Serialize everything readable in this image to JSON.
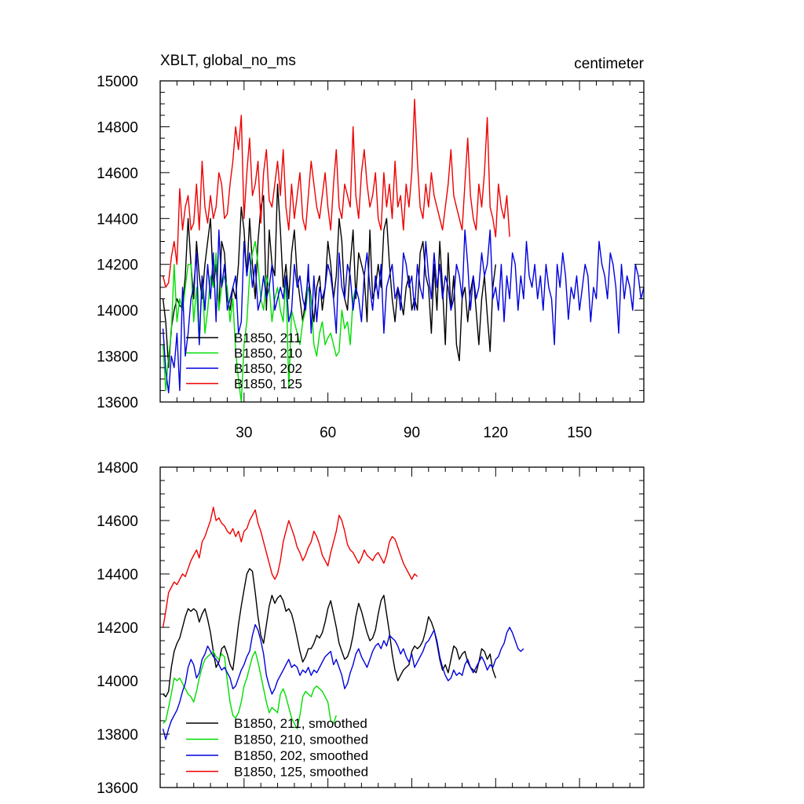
{
  "chart_data": [
    {
      "type": "line",
      "title": "XBLT, global_no_ms",
      "units_label": "centimeter",
      "xlim": [
        0,
        173
      ],
      "ylim": [
        13600,
        15000
      ],
      "xticks": [
        30,
        60,
        90,
        120,
        150
      ],
      "yticks": [
        13600,
        13800,
        14000,
        14200,
        14400,
        14600,
        14800,
        15000
      ],
      "xtick_labels": [
        "30",
        "60",
        "90",
        "120",
        "150"
      ],
      "ytick_labels": [
        "13600",
        "13800",
        "14000",
        "14200",
        "14400",
        "14600",
        "14800",
        "15000"
      ],
      "legend_position": "bottom-left",
      "series": [
        {
          "name": "B1850, 211",
          "color": "#000000",
          "values": [
            14050,
            13950,
            13750,
            13920,
            14000,
            14050,
            14020,
            14010,
            14150,
            14400,
            14200,
            14050,
            14300,
            14150,
            14050,
            14200,
            14300,
            14400,
            14100,
            14200,
            14000,
            14300,
            14250,
            14050,
            14000,
            14100,
            14050,
            14200,
            14450,
            14350,
            14150,
            14400,
            14200,
            14050,
            14300,
            14450,
            14500,
            14000,
            14350,
            14200,
            14150,
            14550,
            14350,
            14100,
            14200,
            14050,
            14250,
            14350,
            14150,
            14050,
            13950,
            14050,
            14150,
            14050,
            13950,
            14100,
            14150,
            14000,
            14100,
            14300,
            14200,
            14050,
            14150,
            14400,
            14300,
            14050,
            14000,
            14200,
            14350,
            14050,
            14250,
            14200,
            14150,
            13950,
            14350,
            14050,
            14100,
            14200,
            14100,
            14350,
            14400,
            14200,
            14050,
            13950,
            14100,
            14050,
            13980,
            14100,
            14150,
            14000,
            14050,
            14000,
            14250,
            14300,
            14150,
            14100,
            13900,
            14200,
            14000,
            14300,
            14100,
            13850,
            14250,
            14000,
            14150,
            13850,
            13780,
            14050,
            14100,
            13950,
            14080,
            14150,
            14000,
            13850,
            14050,
            14150,
            13980,
            13820,
            14100,
            14200
          ]
        },
        {
          "name": "B1850, 210",
          "color": "#00dd00",
          "values": [
            13850,
            13650,
            13800,
            13900,
            14200,
            13950,
            14050,
            14000,
            14100,
            14200,
            14200,
            13950,
            14100,
            13850,
            14150,
            13900,
            14000,
            14150,
            14100,
            14250,
            14000,
            14100,
            14150,
            14100,
            13950,
            14050,
            13820,
            13700,
            13600,
            13850,
            13950,
            14150,
            14250,
            14300,
            14200,
            14050,
            14000,
            14150,
            14100,
            13950,
            14050,
            14100,
            14000,
            13950,
            14150,
            13660,
            14000,
            13950,
            13900,
            13850,
            13950,
            14000,
            14100,
            14050,
            13850,
            13800,
            13900,
            13950,
            13850,
            13880,
            13900,
            13850,
            13800,
            13820,
            14000,
            13920,
            13950,
            13850,
            14050,
            14100
          ]
        },
        {
          "name": "B1850, 202",
          "color": "#0000dd",
          "values": [
            13920,
            13740,
            13640,
            13800,
            13750,
            13900,
            13650,
            14100,
            13800,
            13900,
            14050,
            14100,
            14250,
            13850,
            14150,
            14000,
            14200,
            14050,
            14250,
            13950,
            14350,
            14100,
            14200,
            14000,
            14050,
            14100,
            14150,
            13900,
            13950,
            14300,
            14150,
            14250,
            14100,
            14200,
            14000,
            14050,
            14150,
            14050,
            14100,
            14200,
            14000,
            14050,
            14100,
            14050,
            14150,
            13950,
            14000,
            14200,
            14100,
            14150,
            14050,
            14000,
            14200,
            13900,
            14150,
            13950,
            14100,
            14050,
            14100,
            14200,
            14150,
            14050,
            13900,
            14250,
            14100,
            14050,
            14200,
            14150,
            14000,
            14100,
            14050,
            13950,
            14150,
            14250,
            14100,
            14000,
            14150,
            14050,
            14200,
            13900,
            14100,
            14150,
            14200,
            14050,
            14100,
            14000,
            14250,
            14200,
            14100,
            14150,
            14000,
            14200,
            14100,
            14050,
            14300,
            14150,
            14050,
            14250,
            14100,
            14200,
            14050,
            14150,
            14100,
            14000,
            14050,
            14200,
            14150,
            14050,
            14350,
            14200,
            14000,
            14150,
            14050,
            14100,
            14250,
            14150,
            14200,
            14350,
            14050,
            14100,
            14000,
            14200,
            13950,
            14150,
            14050,
            14250,
            14200,
            14000,
            14150,
            14050,
            14300,
            14150,
            14100,
            14200,
            14050,
            14150,
            14000,
            14200,
            14100,
            14050,
            13850,
            14200,
            14100,
            14250,
            14150,
            13960,
            14100,
            14050,
            14150,
            14000,
            14100,
            14200,
            14150,
            13950,
            14100,
            14050,
            14300,
            14200,
            14150,
            14050,
            14250,
            14200,
            14100,
            13900,
            14200,
            14050,
            14150,
            14100,
            14000,
            14200,
            14150,
            14050,
            14100,
            14200
          ]
        },
        {
          "name": "B1850, 125",
          "color": "#ee0000",
          "values": [
            14150,
            14100,
            14120,
            14230,
            14300,
            14200,
            14530,
            14350,
            14450,
            14500,
            14350,
            14380,
            14550,
            14350,
            14650,
            14450,
            14380,
            14500,
            14400,
            14450,
            14600,
            14550,
            14400,
            14420,
            14550,
            14650,
            14800,
            14700,
            14850,
            14400,
            14600,
            14750,
            14500,
            14550,
            14650,
            14380,
            14600,
            14700,
            14480,
            14450,
            14550,
            14650,
            14500,
            14700,
            14450,
            14350,
            14550,
            14400,
            14500,
            14600,
            14400,
            14350,
            14500,
            14650,
            14550,
            14450,
            14400,
            14500,
            14600,
            14450,
            14350,
            14550,
            14700,
            14450,
            14400,
            14550,
            14500,
            14450,
            14800,
            14500,
            14400,
            14600,
            14700,
            14550,
            14450,
            14500,
            14600,
            14400,
            14350,
            14600,
            14450,
            14550,
            14400,
            14650,
            14450,
            14500,
            14350,
            14550,
            14450,
            14600,
            14920,
            14650,
            14450,
            14400,
            14550,
            14450,
            14600,
            14500,
            14450,
            14400,
            14350,
            14450,
            14550,
            14700,
            14500,
            14450,
            14400,
            14350,
            14550,
            14750,
            14500,
            14400,
            14350,
            14550,
            14450,
            14600,
            14840,
            14450,
            14400,
            14320,
            14550,
            14450,
            14400,
            14500,
            14320
          ]
        }
      ]
    },
    {
      "type": "line",
      "title": "",
      "xlim": [
        0,
        173
      ],
      "ylim": [
        13600,
        14800
      ],
      "xticks": [
        30,
        60,
        90,
        120,
        150
      ],
      "yticks": [
        13600,
        13800,
        14000,
        14200,
        14400,
        14600,
        14800
      ],
      "ytick_labels": [
        "13600",
        "13800",
        "14000",
        "14200",
        "14400",
        "14600",
        "14800"
      ],
      "legend_position": "bottom-left",
      "series": [
        {
          "name": "B1850, 211, smoothed",
          "color": "#000000",
          "values": [
            13950,
            13940,
            13960,
            14050,
            14110,
            14140,
            14160,
            14200,
            14240,
            14270,
            14260,
            14270,
            14260,
            14220,
            14250,
            14270,
            14230,
            14180,
            14110,
            14050,
            14070,
            14120,
            14130,
            14100,
            14060,
            14040,
            14120,
            14210,
            14280,
            14340,
            14400,
            14420,
            14410,
            14330,
            14240,
            14170,
            14140,
            14210,
            14280,
            14320,
            14290,
            14310,
            14320,
            14300,
            14260,
            14270,
            14250,
            14210,
            14160,
            14110,
            14070,
            14090,
            14120,
            14120,
            14140,
            14170,
            14160,
            14180,
            14220,
            14270,
            14300,
            14250,
            14200,
            14140,
            14110,
            14080,
            14090,
            14120,
            14170,
            14240,
            14290,
            14260,
            14220,
            14180,
            14150,
            14160,
            14190,
            14250,
            14300,
            14320,
            14250,
            14180,
            14100,
            14040,
            14000,
            14020,
            14040,
            14050,
            14060,
            14110,
            14130,
            14120,
            14130,
            14150,
            14190,
            14240,
            14220,
            14190,
            14140,
            14080,
            14040,
            14060,
            14030,
            14080,
            14130,
            14120,
            14080,
            14100,
            14110,
            14070,
            14050,
            14040,
            14030,
            14070,
            14120,
            14110,
            14080,
            14100,
            14040,
            14010
          ]
        },
        {
          "name": "B1850, 210, smoothed",
          "color": "#00dd00",
          "values": [
            13840,
            13850,
            13900,
            13950,
            14010,
            14000,
            14010,
            13990,
            13970,
            13950,
            13940,
            13920,
            13960,
            14010,
            14050,
            14080,
            14090,
            14100,
            14110,
            14090,
            14080,
            14100,
            14090,
            14000,
            13920,
            13870,
            13860,
            13880,
            13920,
            13980,
            14010,
            14050,
            14090,
            14110,
            14070,
            14020,
            13970,
            13920,
            13880,
            13900,
            13890,
            13880,
            13950,
            13970,
            13940,
            13900,
            13860,
            13840,
            13820,
            13870,
            13940,
            13960,
            13950,
            13940,
            13970,
            13980,
            13970,
            13960,
            13940,
            13920,
            13850,
            13840,
            13870
          ]
        },
        {
          "name": "B1850, 202, smoothed",
          "color": "#0000dd",
          "values": [
            13820,
            13780,
            13820,
            13850,
            13870,
            13890,
            13920,
            13960,
            13990,
            14050,
            14080,
            14060,
            14010,
            14030,
            14080,
            14100,
            14130,
            14110,
            14090,
            14080,
            14060,
            14040,
            14050,
            14030,
            14010,
            13970,
            13980,
            14010,
            14040,
            14060,
            14090,
            14110,
            14170,
            14210,
            14190,
            14150,
            14100,
            14020,
            13980,
            13950,
            13970,
            14000,
            14020,
            14040,
            14060,
            14080,
            14050,
            14060,
            14050,
            14020,
            14040,
            14030,
            14050,
            14020,
            14040,
            14030,
            14050,
            14070,
            14090,
            14100,
            14110,
            14060,
            14080,
            14050,
            14020,
            13970,
            13990,
            14030,
            14060,
            14100,
            14120,
            14090,
            14070,
            14050,
            14080,
            14110,
            14130,
            14140,
            14120,
            14150,
            14130,
            14170,
            14160,
            14150,
            14130,
            14100,
            14120,
            14090,
            14070,
            14100,
            14050,
            14070,
            14090,
            14110,
            14140,
            14150,
            14170,
            14190,
            14150,
            14090,
            14050,
            14020,
            14000,
            14010,
            14040,
            14020,
            14030,
            14020,
            14060,
            14080,
            14050,
            14030,
            14050,
            14070,
            14090,
            14070,
            14040,
            14060,
            14050,
            14080,
            14090,
            14120,
            14140,
            14180,
            14200,
            14180,
            14150,
            14120,
            14110,
            14120
          ]
        },
        {
          "name": "B1850, 125, smoothed",
          "color": "#ee0000",
          "values": [
            14200,
            14260,
            14330,
            14350,
            14370,
            14360,
            14380,
            14400,
            14390,
            14420,
            14450,
            14470,
            14490,
            14460,
            14520,
            14540,
            14570,
            14600,
            14650,
            14600,
            14610,
            14590,
            14580,
            14560,
            14550,
            14570,
            14540,
            14560,
            14520,
            14560,
            14570,
            14600,
            14620,
            14640,
            14590,
            14560,
            14520,
            14480,
            14440,
            14400,
            14380,
            14400,
            14450,
            14520,
            14560,
            14600,
            14570,
            14540,
            14500,
            14480,
            14450,
            14470,
            14500,
            14520,
            14560,
            14540,
            14510,
            14470,
            14450,
            14430,
            14480,
            14520,
            14560,
            14620,
            14600,
            14560,
            14510,
            14490,
            14480,
            14460,
            14440,
            14460,
            14490,
            14470,
            14460,
            14450,
            14470,
            14480,
            14460,
            14440,
            14470,
            14520,
            14540,
            14530,
            14500,
            14470,
            14440,
            14420,
            14400,
            14380,
            14400,
            14390
          ]
        }
      ]
    }
  ]
}
